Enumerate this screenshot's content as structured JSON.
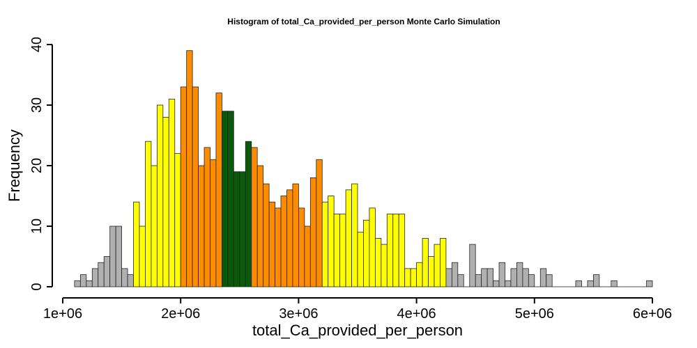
{
  "chart_data": {
    "type": "bar",
    "title": "Histogram of  total_Ca_provided_per_person  Monte Carlo Simulation",
    "xlabel": "total_Ca_provided_per_person",
    "ylabel": "Frequency",
    "xlim": [
      1000000,
      6000000
    ],
    "ylim": [
      0,
      40
    ],
    "bin_width": 50000,
    "x_ticks": [
      1000000,
      2000000,
      3000000,
      4000000,
      5000000,
      6000000
    ],
    "x_tick_labels": [
      "1e+06",
      "2e+06",
      "3e+06",
      "4e+06",
      "5e+06",
      "6e+06"
    ],
    "y_ticks": [
      0,
      10,
      20,
      30,
      40
    ],
    "y_tick_labels": [
      "0",
      "10",
      "20",
      "30",
      "40"
    ],
    "grid": false,
    "colors": {
      "gray": "#b0b0b0",
      "yellow": "#ffff00",
      "orange": "#ff8c00",
      "green": "#0b5a0b",
      "edge": "#222222"
    },
    "bins": [
      {
        "x0": 1100000,
        "x1": 1150000,
        "count": 1,
        "color": "gray"
      },
      {
        "x0": 1150000,
        "x1": 1200000,
        "count": 2,
        "color": "gray"
      },
      {
        "x0": 1200000,
        "x1": 1250000,
        "count": 1,
        "color": "gray"
      },
      {
        "x0": 1250000,
        "x1": 1300000,
        "count": 3,
        "color": "gray"
      },
      {
        "x0": 1300000,
        "x1": 1350000,
        "count": 4,
        "color": "gray"
      },
      {
        "x0": 1350000,
        "x1": 1400000,
        "count": 5,
        "color": "gray"
      },
      {
        "x0": 1400000,
        "x1": 1450000,
        "count": 10,
        "color": "gray"
      },
      {
        "x0": 1450000,
        "x1": 1500000,
        "count": 10,
        "color": "gray"
      },
      {
        "x0": 1500000,
        "x1": 1550000,
        "count": 3,
        "color": "gray"
      },
      {
        "x0": 1550000,
        "x1": 1600000,
        "count": 2,
        "color": "gray"
      },
      {
        "x0": 1600000,
        "x1": 1650000,
        "count": 14,
        "color": "yellow"
      },
      {
        "x0": 1650000,
        "x1": 1700000,
        "count": 10,
        "color": "yellow"
      },
      {
        "x0": 1700000,
        "x1": 1750000,
        "count": 24,
        "color": "yellow"
      },
      {
        "x0": 1750000,
        "x1": 1800000,
        "count": 20,
        "color": "yellow"
      },
      {
        "x0": 1800000,
        "x1": 1850000,
        "count": 30,
        "color": "yellow"
      },
      {
        "x0": 1850000,
        "x1": 1900000,
        "count": 28,
        "color": "yellow"
      },
      {
        "x0": 1900000,
        "x1": 1950000,
        "count": 31,
        "color": "yellow"
      },
      {
        "x0": 1950000,
        "x1": 2000000,
        "count": 22,
        "color": "yellow"
      },
      {
        "x0": 2000000,
        "x1": 2050000,
        "count": 33,
        "color": "orange"
      },
      {
        "x0": 2050000,
        "x1": 2100000,
        "count": 39,
        "color": "orange"
      },
      {
        "x0": 2100000,
        "x1": 2150000,
        "count": 33,
        "color": "orange"
      },
      {
        "x0": 2150000,
        "x1": 2200000,
        "count": 20,
        "color": "orange"
      },
      {
        "x0": 2200000,
        "x1": 2250000,
        "count": 23,
        "color": "orange"
      },
      {
        "x0": 2250000,
        "x1": 2300000,
        "count": 21,
        "color": "orange"
      },
      {
        "x0": 2300000,
        "x1": 2350000,
        "count": 32,
        "color": "orange"
      },
      {
        "x0": 2350000,
        "x1": 2400000,
        "count": 29,
        "color": "green"
      },
      {
        "x0": 2400000,
        "x1": 2450000,
        "count": 29,
        "color": "green"
      },
      {
        "x0": 2450000,
        "x1": 2500000,
        "count": 19,
        "color": "green"
      },
      {
        "x0": 2500000,
        "x1": 2550000,
        "count": 19,
        "color": "green"
      },
      {
        "x0": 2550000,
        "x1": 2600000,
        "count": 24,
        "color": "green"
      },
      {
        "x0": 2600000,
        "x1": 2650000,
        "count": 23,
        "color": "orange"
      },
      {
        "x0": 2650000,
        "x1": 2700000,
        "count": 20,
        "color": "orange"
      },
      {
        "x0": 2700000,
        "x1": 2750000,
        "count": 17,
        "color": "orange"
      },
      {
        "x0": 2750000,
        "x1": 2800000,
        "count": 14,
        "color": "orange"
      },
      {
        "x0": 2800000,
        "x1": 2850000,
        "count": 13,
        "color": "orange"
      },
      {
        "x0": 2850000,
        "x1": 2900000,
        "count": 15,
        "color": "orange"
      },
      {
        "x0": 2900000,
        "x1": 2950000,
        "count": 16,
        "color": "orange"
      },
      {
        "x0": 2950000,
        "x1": 3000000,
        "count": 17,
        "color": "orange"
      },
      {
        "x0": 3000000,
        "x1": 3050000,
        "count": 13,
        "color": "orange"
      },
      {
        "x0": 3050000,
        "x1": 3100000,
        "count": 10,
        "color": "orange"
      },
      {
        "x0": 3100000,
        "x1": 3150000,
        "count": 18,
        "color": "orange"
      },
      {
        "x0": 3150000,
        "x1": 3200000,
        "count": 21,
        "color": "orange"
      },
      {
        "x0": 3200000,
        "x1": 3250000,
        "count": 14,
        "color": "yellow"
      },
      {
        "x0": 3250000,
        "x1": 3300000,
        "count": 15,
        "color": "yellow"
      },
      {
        "x0": 3300000,
        "x1": 3350000,
        "count": 12,
        "color": "yellow"
      },
      {
        "x0": 3350000,
        "x1": 3400000,
        "count": 12,
        "color": "yellow"
      },
      {
        "x0": 3400000,
        "x1": 3450000,
        "count": 16,
        "color": "yellow"
      },
      {
        "x0": 3450000,
        "x1": 3500000,
        "count": 17,
        "color": "yellow"
      },
      {
        "x0": 3500000,
        "x1": 3550000,
        "count": 9,
        "color": "yellow"
      },
      {
        "x0": 3550000,
        "x1": 3600000,
        "count": 11,
        "color": "yellow"
      },
      {
        "x0": 3600000,
        "x1": 3650000,
        "count": 13,
        "color": "yellow"
      },
      {
        "x0": 3650000,
        "x1": 3700000,
        "count": 8,
        "color": "yellow"
      },
      {
        "x0": 3700000,
        "x1": 3750000,
        "count": 7,
        "color": "yellow"
      },
      {
        "x0": 3750000,
        "x1": 3800000,
        "count": 12,
        "color": "yellow"
      },
      {
        "x0": 3800000,
        "x1": 3850000,
        "count": 12,
        "color": "yellow"
      },
      {
        "x0": 3850000,
        "x1": 3900000,
        "count": 12,
        "color": "yellow"
      },
      {
        "x0": 3900000,
        "x1": 3950000,
        "count": 3,
        "color": "yellow"
      },
      {
        "x0": 3950000,
        "x1": 4000000,
        "count": 3,
        "color": "yellow"
      },
      {
        "x0": 4000000,
        "x1": 4050000,
        "count": 4,
        "color": "yellow"
      },
      {
        "x0": 4050000,
        "x1": 4100000,
        "count": 8,
        "color": "yellow"
      },
      {
        "x0": 4100000,
        "x1": 4150000,
        "count": 5,
        "color": "yellow"
      },
      {
        "x0": 4150000,
        "x1": 4200000,
        "count": 7,
        "color": "yellow"
      },
      {
        "x0": 4200000,
        "x1": 4250000,
        "count": 8,
        "color": "yellow"
      },
      {
        "x0": 4250000,
        "x1": 4300000,
        "count": 3,
        "color": "gray"
      },
      {
        "x0": 4300000,
        "x1": 4350000,
        "count": 4,
        "color": "gray"
      },
      {
        "x0": 4350000,
        "x1": 4400000,
        "count": 2,
        "color": "gray"
      },
      {
        "x0": 4400000,
        "x1": 4450000,
        "count": 0,
        "color": "gray"
      },
      {
        "x0": 4450000,
        "x1": 4500000,
        "count": 7,
        "color": "gray"
      },
      {
        "x0": 4500000,
        "x1": 4550000,
        "count": 2,
        "color": "gray"
      },
      {
        "x0": 4550000,
        "x1": 4600000,
        "count": 3,
        "color": "gray"
      },
      {
        "x0": 4600000,
        "x1": 4650000,
        "count": 3,
        "color": "gray"
      },
      {
        "x0": 4650000,
        "x1": 4700000,
        "count": 1,
        "color": "gray"
      },
      {
        "x0": 4700000,
        "x1": 4750000,
        "count": 4,
        "color": "gray"
      },
      {
        "x0": 4750000,
        "x1": 4800000,
        "count": 1,
        "color": "gray"
      },
      {
        "x0": 4800000,
        "x1": 4850000,
        "count": 3,
        "color": "gray"
      },
      {
        "x0": 4850000,
        "x1": 4900000,
        "count": 4,
        "color": "gray"
      },
      {
        "x0": 4900000,
        "x1": 4950000,
        "count": 3,
        "color": "gray"
      },
      {
        "x0": 4950000,
        "x1": 5000000,
        "count": 2,
        "color": "gray"
      },
      {
        "x0": 5000000,
        "x1": 5050000,
        "count": 0,
        "color": "gray"
      },
      {
        "x0": 5050000,
        "x1": 5100000,
        "count": 3,
        "color": "gray"
      },
      {
        "x0": 5100000,
        "x1": 5150000,
        "count": 2,
        "color": "gray"
      },
      {
        "x0": 5150000,
        "x1": 5200000,
        "count": 0,
        "color": "gray"
      },
      {
        "x0": 5200000,
        "x1": 5250000,
        "count": 0,
        "color": "gray"
      },
      {
        "x0": 5250000,
        "x1": 5300000,
        "count": 0,
        "color": "gray"
      },
      {
        "x0": 5300000,
        "x1": 5350000,
        "count": 0,
        "color": "gray"
      },
      {
        "x0": 5350000,
        "x1": 5400000,
        "count": 1,
        "color": "gray"
      },
      {
        "x0": 5400000,
        "x1": 5450000,
        "count": 0,
        "color": "gray"
      },
      {
        "x0": 5450000,
        "x1": 5500000,
        "count": 1,
        "color": "gray"
      },
      {
        "x0": 5500000,
        "x1": 5550000,
        "count": 2,
        "color": "gray"
      },
      {
        "x0": 5550000,
        "x1": 5600000,
        "count": 0,
        "color": "gray"
      },
      {
        "x0": 5600000,
        "x1": 5650000,
        "count": 0,
        "color": "gray"
      },
      {
        "x0": 5650000,
        "x1": 5700000,
        "count": 1,
        "color": "gray"
      },
      {
        "x0": 5700000,
        "x1": 5750000,
        "count": 0,
        "color": "gray"
      },
      {
        "x0": 5750000,
        "x1": 5800000,
        "count": 0,
        "color": "gray"
      },
      {
        "x0": 5800000,
        "x1": 5850000,
        "count": 0,
        "color": "gray"
      },
      {
        "x0": 5850000,
        "x1": 5900000,
        "count": 0,
        "color": "gray"
      },
      {
        "x0": 5900000,
        "x1": 5950000,
        "count": 0,
        "color": "gray"
      },
      {
        "x0": 5950000,
        "x1": 6000000,
        "count": 1,
        "color": "gray"
      }
    ]
  }
}
